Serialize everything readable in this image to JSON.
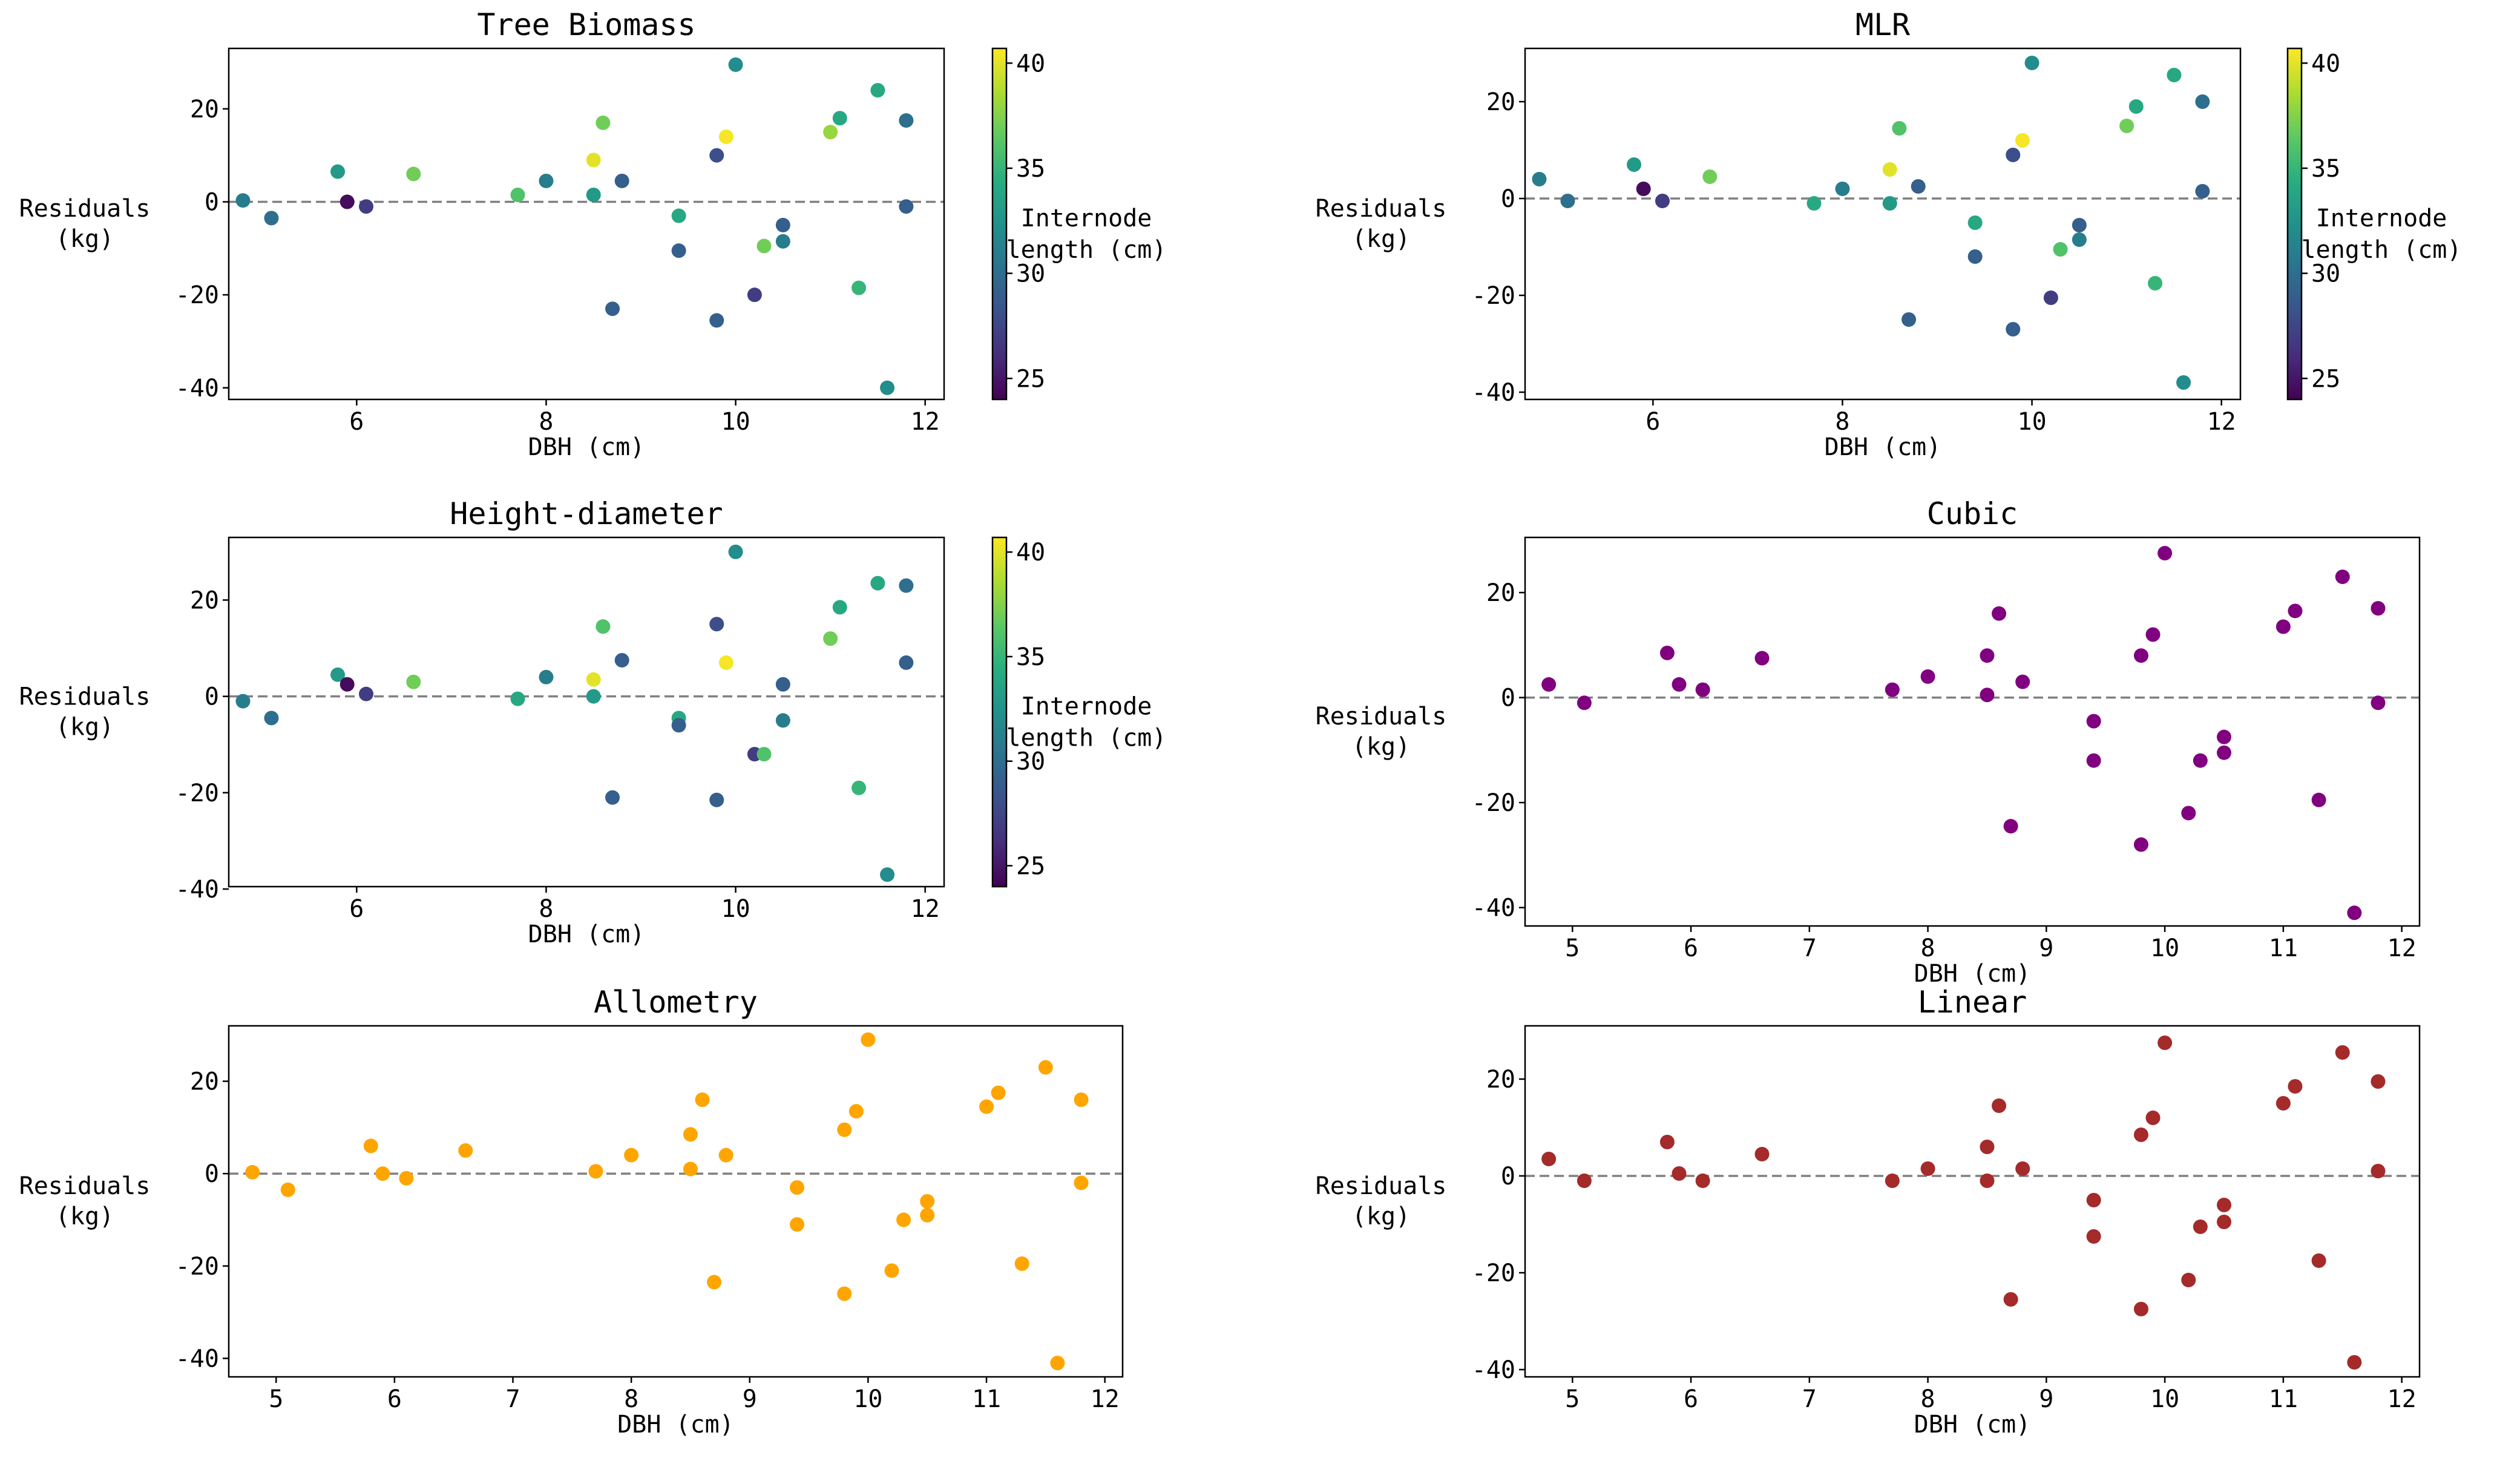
{
  "colorbar": {
    "label_line1": "Internode",
    "label_line2": "length (cm)",
    "ticks": [
      25,
      30,
      35,
      40
    ],
    "range": [
      24,
      40.7
    ],
    "colormap": "viridis"
  },
  "zero_line_color": "#808080",
  "chart_data": [
    {
      "id": "tree-biomass",
      "type": "scatter",
      "title": "Tree Biomass",
      "xlabel": "DBH (cm)",
      "ylabel_line1": "Residuals",
      "ylabel_line2": "(kg)",
      "xlim": [
        4.65,
        12.2
      ],
      "ylim": [
        -42.5,
        33
      ],
      "xticks": [
        6,
        8,
        10,
        12
      ],
      "yticks": [
        -40,
        -20,
        0,
        20
      ],
      "colorbar": true,
      "points": [
        {
          "x": 4.8,
          "y": 0.3,
          "c": 31
        },
        {
          "x": 5.1,
          "y": -3.5,
          "c": 30
        },
        {
          "x": 5.8,
          "y": 6.5,
          "c": 33
        },
        {
          "x": 5.9,
          "y": 0.0,
          "c": 24.5
        },
        {
          "x": 6.1,
          "y": -1.0,
          "c": 27
        },
        {
          "x": 6.6,
          "y": 6.0,
          "c": 37
        },
        {
          "x": 7.7,
          "y": 1.5,
          "c": 36
        },
        {
          "x": 8.0,
          "y": 4.5,
          "c": 31
        },
        {
          "x": 8.5,
          "y": 9.0,
          "c": 40
        },
        {
          "x": 8.5,
          "y": 1.5,
          "c": 33
        },
        {
          "x": 8.6,
          "y": 17.0,
          "c": 37
        },
        {
          "x": 8.7,
          "y": -23.0,
          "c": 29
        },
        {
          "x": 8.8,
          "y": 4.5,
          "c": 29
        },
        {
          "x": 9.4,
          "y": -3.0,
          "c": 34
        },
        {
          "x": 9.4,
          "y": -10.5,
          "c": 29
        },
        {
          "x": 9.8,
          "y": 10.0,
          "c": 28
        },
        {
          "x": 9.8,
          "y": -25.5,
          "c": 29
        },
        {
          "x": 9.9,
          "y": 14.0,
          "c": 40.5
        },
        {
          "x": 10.0,
          "y": 29.5,
          "c": 32
        },
        {
          "x": 10.2,
          "y": -20.0,
          "c": 27
        },
        {
          "x": 10.3,
          "y": -9.5,
          "c": 37
        },
        {
          "x": 10.5,
          "y": -5.0,
          "c": 29
        },
        {
          "x": 10.5,
          "y": -8.5,
          "c": 31
        },
        {
          "x": 11.0,
          "y": 15.0,
          "c": 38
        },
        {
          "x": 11.1,
          "y": 18.0,
          "c": 34
        },
        {
          "x": 11.3,
          "y": -18.5,
          "c": 35
        },
        {
          "x": 11.5,
          "y": 24.0,
          "c": 34
        },
        {
          "x": 11.6,
          "y": -40.0,
          "c": 32
        },
        {
          "x": 11.8,
          "y": 17.5,
          "c": 30
        },
        {
          "x": 11.8,
          "y": -1.0,
          "c": 29
        }
      ]
    },
    {
      "id": "mlr",
      "type": "scatter",
      "title": "MLR",
      "xlabel": "DBH (cm)",
      "ylabel_line1": "Residuals",
      "ylabel_line2": "(kg)",
      "xlim": [
        4.65,
        12.2
      ],
      "ylim": [
        -41.5,
        31
      ],
      "xticks": [
        6,
        8,
        10,
        12
      ],
      "yticks": [
        -40,
        -20,
        0,
        20
      ],
      "colorbar": true,
      "points": [
        {
          "x": 4.8,
          "y": 4.0,
          "c": 31
        },
        {
          "x": 5.1,
          "y": -0.5,
          "c": 30
        },
        {
          "x": 5.8,
          "y": 7.0,
          "c": 33
        },
        {
          "x": 5.9,
          "y": 2.0,
          "c": 24.5
        },
        {
          "x": 6.1,
          "y": -0.5,
          "c": 27
        },
        {
          "x": 6.6,
          "y": 4.5,
          "c": 37
        },
        {
          "x": 7.7,
          "y": -1.0,
          "c": 34
        },
        {
          "x": 8.0,
          "y": 2.0,
          "c": 31
        },
        {
          "x": 8.5,
          "y": 6.0,
          "c": 40
        },
        {
          "x": 8.5,
          "y": -1.0,
          "c": 33
        },
        {
          "x": 8.6,
          "y": 14.5,
          "c": 36
        },
        {
          "x": 8.7,
          "y": -25.0,
          "c": 29
        },
        {
          "x": 8.8,
          "y": 2.5,
          "c": 29
        },
        {
          "x": 9.4,
          "y": -5.0,
          "c": 34
        },
        {
          "x": 9.4,
          "y": -12.0,
          "c": 29
        },
        {
          "x": 9.8,
          "y": 9.0,
          "c": 28
        },
        {
          "x": 9.8,
          "y": -27.0,
          "c": 29
        },
        {
          "x": 9.9,
          "y": 12.0,
          "c": 40.5
        },
        {
          "x": 10.0,
          "y": 28.0,
          "c": 32
        },
        {
          "x": 10.2,
          "y": -20.5,
          "c": 27
        },
        {
          "x": 10.3,
          "y": -10.5,
          "c": 36
        },
        {
          "x": 10.5,
          "y": -5.5,
          "c": 29
        },
        {
          "x": 10.5,
          "y": -8.5,
          "c": 31
        },
        {
          "x": 11.0,
          "y": 15.0,
          "c": 37
        },
        {
          "x": 11.1,
          "y": 19.0,
          "c": 34
        },
        {
          "x": 11.3,
          "y": -17.5,
          "c": 35
        },
        {
          "x": 11.5,
          "y": 25.5,
          "c": 34
        },
        {
          "x": 11.6,
          "y": -38.0,
          "c": 32
        },
        {
          "x": 11.8,
          "y": 20.0,
          "c": 30
        },
        {
          "x": 11.8,
          "y": 1.5,
          "c": 29
        }
      ]
    },
    {
      "id": "height-diameter",
      "type": "scatter",
      "title": "Height-diameter",
      "xlabel": "DBH (cm)",
      "ylabel_line1": "Residuals",
      "ylabel_line2": "(kg)",
      "xlim": [
        4.65,
        12.2
      ],
      "ylim": [
        -39.5,
        33
      ],
      "xticks": [
        6,
        8,
        10,
        12
      ],
      "yticks": [
        -40,
        -20,
        0,
        20
      ],
      "colorbar": true,
      "points": [
        {
          "x": 4.8,
          "y": -1.0,
          "c": 31
        },
        {
          "x": 5.1,
          "y": -4.5,
          "c": 30
        },
        {
          "x": 5.8,
          "y": 4.5,
          "c": 33
        },
        {
          "x": 5.9,
          "y": 2.5,
          "c": 24.5
        },
        {
          "x": 6.1,
          "y": 0.5,
          "c": 27
        },
        {
          "x": 6.6,
          "y": 3.0,
          "c": 37
        },
        {
          "x": 7.7,
          "y": -0.5,
          "c": 34
        },
        {
          "x": 8.0,
          "y": 4.0,
          "c": 31
        },
        {
          "x": 8.5,
          "y": 3.5,
          "c": 40
        },
        {
          "x": 8.5,
          "y": 0.0,
          "c": 33
        },
        {
          "x": 8.6,
          "y": 14.5,
          "c": 36
        },
        {
          "x": 8.7,
          "y": -21.0,
          "c": 29
        },
        {
          "x": 8.8,
          "y": 7.5,
          "c": 29
        },
        {
          "x": 9.4,
          "y": -4.5,
          "c": 34
        },
        {
          "x": 9.4,
          "y": -6.0,
          "c": 29
        },
        {
          "x": 9.8,
          "y": 15.0,
          "c": 28
        },
        {
          "x": 9.8,
          "y": -21.5,
          "c": 29
        },
        {
          "x": 9.9,
          "y": 7.0,
          "c": 40.5
        },
        {
          "x": 10.0,
          "y": 30.0,
          "c": 32
        },
        {
          "x": 10.2,
          "y": -12.0,
          "c": 27
        },
        {
          "x": 10.3,
          "y": -12.0,
          "c": 36
        },
        {
          "x": 10.5,
          "y": 2.5,
          "c": 29
        },
        {
          "x": 10.5,
          "y": -5.0,
          "c": 31
        },
        {
          "x": 11.0,
          "y": 12.0,
          "c": 37
        },
        {
          "x": 11.1,
          "y": 18.5,
          "c": 34
        },
        {
          "x": 11.3,
          "y": -19.0,
          "c": 35
        },
        {
          "x": 11.5,
          "y": 23.5,
          "c": 34
        },
        {
          "x": 11.6,
          "y": -37.0,
          "c": 32
        },
        {
          "x": 11.8,
          "y": 23.0,
          "c": 30
        },
        {
          "x": 11.8,
          "y": 7.0,
          "c": 29
        }
      ]
    },
    {
      "id": "cubic",
      "type": "scatter",
      "title": "Cubic",
      "xlabel": "DBH (cm)",
      "ylabel_line1": "Residuals",
      "ylabel_line2": "(kg)",
      "xlim": [
        4.6,
        12.15
      ],
      "ylim": [
        -43.5,
        30.5
      ],
      "xticks": [
        5,
        6,
        7,
        8,
        9,
        10,
        11,
        12
      ],
      "yticks": [
        -40,
        -20,
        0,
        20
      ],
      "colorbar": false,
      "color": "#800080",
      "points": [
        {
          "x": 4.8,
          "y": 2.5
        },
        {
          "x": 5.1,
          "y": -1.0
        },
        {
          "x": 5.8,
          "y": 8.5
        },
        {
          "x": 5.9,
          "y": 2.5
        },
        {
          "x": 6.1,
          "y": 1.5
        },
        {
          "x": 6.6,
          "y": 7.5
        },
        {
          "x": 7.7,
          "y": 1.5
        },
        {
          "x": 8.0,
          "y": 4.0
        },
        {
          "x": 8.5,
          "y": 8.0
        },
        {
          "x": 8.5,
          "y": 0.5
        },
        {
          "x": 8.6,
          "y": 16.0
        },
        {
          "x": 8.7,
          "y": -24.5
        },
        {
          "x": 8.8,
          "y": 3.0
        },
        {
          "x": 9.4,
          "y": -4.5
        },
        {
          "x": 9.4,
          "y": -12.0
        },
        {
          "x": 9.8,
          "y": 8.0
        },
        {
          "x": 9.8,
          "y": -28.0
        },
        {
          "x": 9.9,
          "y": 12.0
        },
        {
          "x": 10.0,
          "y": 27.5
        },
        {
          "x": 10.2,
          "y": -22.0
        },
        {
          "x": 10.3,
          "y": -12.0
        },
        {
          "x": 10.5,
          "y": -7.5
        },
        {
          "x": 10.5,
          "y": -10.5
        },
        {
          "x": 11.0,
          "y": 13.5
        },
        {
          "x": 11.1,
          "y": 16.5
        },
        {
          "x": 11.3,
          "y": -19.5
        },
        {
          "x": 11.5,
          "y": 23.0
        },
        {
          "x": 11.6,
          "y": -41.0
        },
        {
          "x": 11.8,
          "y": 17.0
        },
        {
          "x": 11.8,
          "y": -1.0
        }
      ]
    },
    {
      "id": "allometry",
      "type": "scatter",
      "title": "Allometry",
      "xlabel": "DBH (cm)",
      "ylabel_line1": "Residuals",
      "ylabel_line2": "(kg)",
      "xlim": [
        4.6,
        12.15
      ],
      "ylim": [
        -44,
        32
      ],
      "xticks": [
        5,
        6,
        7,
        8,
        9,
        10,
        11,
        12
      ],
      "yticks": [
        -40,
        -20,
        0,
        20
      ],
      "colorbar": false,
      "color": "#FFA500",
      "points": [
        {
          "x": 4.8,
          "y": 0.3
        },
        {
          "x": 5.1,
          "y": -3.5
        },
        {
          "x": 5.8,
          "y": 6.0
        },
        {
          "x": 5.9,
          "y": 0.0
        },
        {
          "x": 6.1,
          "y": -1.0
        },
        {
          "x": 6.6,
          "y": 5.0
        },
        {
          "x": 7.7,
          "y": 0.5
        },
        {
          "x": 8.0,
          "y": 4.0
        },
        {
          "x": 8.5,
          "y": 8.5
        },
        {
          "x": 8.5,
          "y": 1.0
        },
        {
          "x": 8.6,
          "y": 16.0
        },
        {
          "x": 8.7,
          "y": -23.5
        },
        {
          "x": 8.8,
          "y": 4.0
        },
        {
          "x": 9.4,
          "y": -3.0
        },
        {
          "x": 9.4,
          "y": -11.0
        },
        {
          "x": 9.8,
          "y": 9.5
        },
        {
          "x": 9.8,
          "y": -26.0
        },
        {
          "x": 9.9,
          "y": 13.5
        },
        {
          "x": 10.0,
          "y": 29.0
        },
        {
          "x": 10.2,
          "y": -21.0
        },
        {
          "x": 10.3,
          "y": -10.0
        },
        {
          "x": 10.5,
          "y": -6.0
        },
        {
          "x": 10.5,
          "y": -9.0
        },
        {
          "x": 11.0,
          "y": 14.5
        },
        {
          "x": 11.1,
          "y": 17.5
        },
        {
          "x": 11.3,
          "y": -19.5
        },
        {
          "x": 11.5,
          "y": 23.0
        },
        {
          "x": 11.6,
          "y": -41.0
        },
        {
          "x": 11.8,
          "y": 16.0
        },
        {
          "x": 11.8,
          "y": -2.0
        }
      ]
    },
    {
      "id": "linear",
      "type": "scatter",
      "title": "Linear",
      "xlabel": "DBH (cm)",
      "ylabel_line1": "Residuals",
      "ylabel_line2": "(kg)",
      "xlim": [
        4.6,
        12.15
      ],
      "ylim": [
        -41.5,
        31
      ],
      "xticks": [
        5,
        6,
        7,
        8,
        9,
        10,
        11,
        12
      ],
      "yticks": [
        -40,
        -20,
        0,
        20
      ],
      "colorbar": false,
      "color": "#A52A2A",
      "points": [
        {
          "x": 4.8,
          "y": 3.5
        },
        {
          "x": 5.1,
          "y": -1.0
        },
        {
          "x": 5.8,
          "y": 7.0
        },
        {
          "x": 5.9,
          "y": 0.5
        },
        {
          "x": 6.1,
          "y": -1.0
        },
        {
          "x": 6.6,
          "y": 4.5
        },
        {
          "x": 7.7,
          "y": -1.0
        },
        {
          "x": 8.0,
          "y": 1.5
        },
        {
          "x": 8.5,
          "y": 6.0
        },
        {
          "x": 8.5,
          "y": -1.0
        },
        {
          "x": 8.6,
          "y": 14.5
        },
        {
          "x": 8.7,
          "y": -25.5
        },
        {
          "x": 8.8,
          "y": 1.5
        },
        {
          "x": 9.4,
          "y": -5.0
        },
        {
          "x": 9.4,
          "y": -12.5
        },
        {
          "x": 9.8,
          "y": 8.5
        },
        {
          "x": 9.8,
          "y": -27.5
        },
        {
          "x": 9.9,
          "y": 12.0
        },
        {
          "x": 10.0,
          "y": 27.5
        },
        {
          "x": 10.2,
          "y": -21.5
        },
        {
          "x": 10.3,
          "y": -10.5
        },
        {
          "x": 10.5,
          "y": -6.0
        },
        {
          "x": 10.5,
          "y": -9.5
        },
        {
          "x": 11.0,
          "y": 15.0
        },
        {
          "x": 11.1,
          "y": 18.5
        },
        {
          "x": 11.3,
          "y": -17.5
        },
        {
          "x": 11.5,
          "y": 25.5
        },
        {
          "x": 11.6,
          "y": -38.5
        },
        {
          "x": 11.8,
          "y": 19.5
        },
        {
          "x": 11.8,
          "y": 1.0
        }
      ]
    }
  ]
}
